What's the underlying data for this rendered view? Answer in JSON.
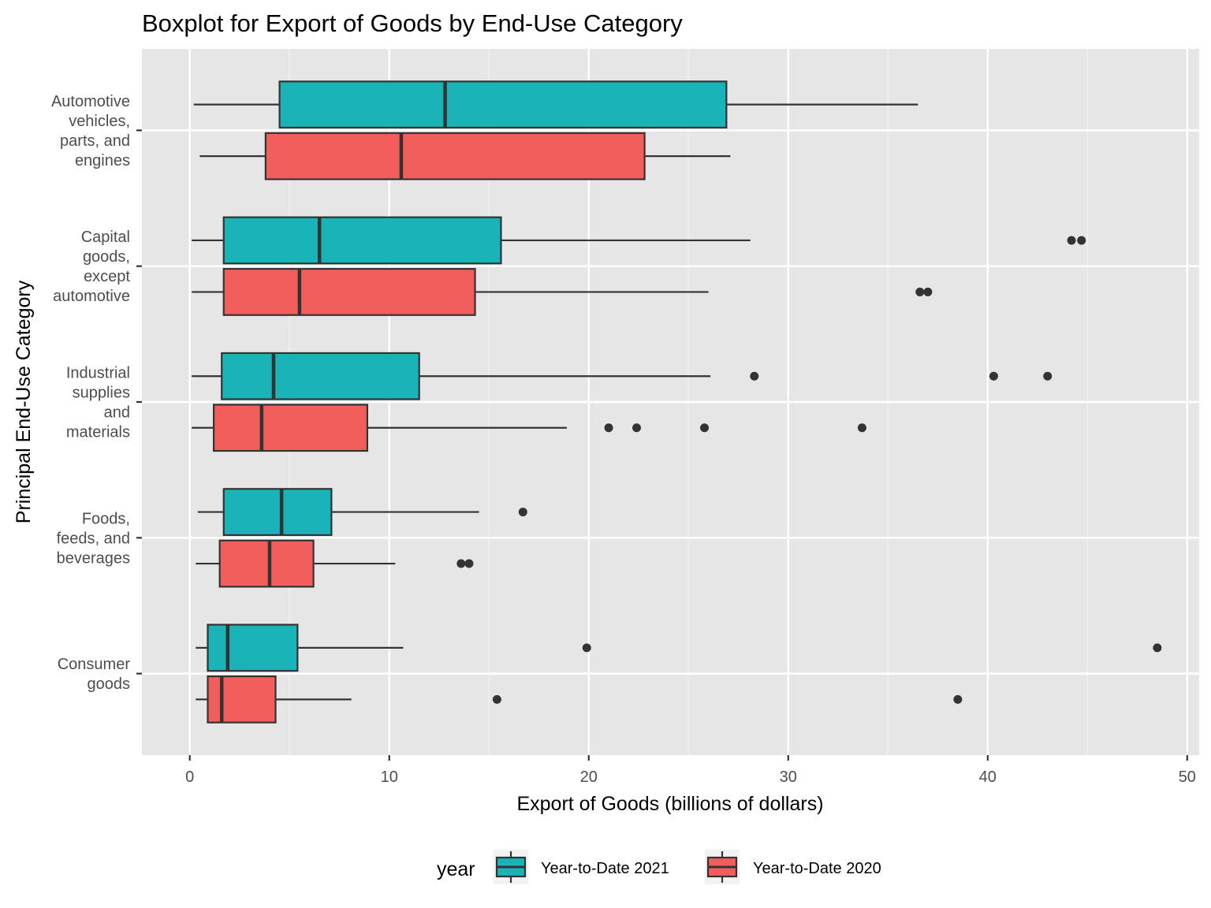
{
  "chart_data": {
    "type": "boxplot",
    "title": "Boxplot for Export of Goods by End-Use Category",
    "xlabel": "Export of Goods (billions of dollars)",
    "ylabel": "Principal End-Use Category",
    "xlim": [
      -2.4,
      50.6
    ],
    "x_ticks": [
      "0",
      "10",
      "20",
      "30",
      "40",
      "50"
    ],
    "x_tick_values": [
      0,
      10,
      20,
      30,
      40,
      50
    ],
    "grid": true,
    "legend": {
      "title": "year",
      "position": "bottom",
      "entries": [
        {
          "label": "Year-to-Date 2021",
          "color": "#1ab3b8"
        },
        {
          "label": "Year-to-Date 2020",
          "color": "#f25e5b"
        }
      ]
    },
    "categories": [
      {
        "label_lines": [
          "Automotive",
          "vehicles,",
          "parts, and",
          "engines"
        ]
      },
      {
        "label_lines": [
          "Capital",
          "goods,",
          "except",
          "automotive"
        ]
      },
      {
        "label_lines": [
          "Industrial",
          "supplies",
          "and",
          "materials"
        ]
      },
      {
        "label_lines": [
          "Foods,",
          "feeds, and",
          "beverages"
        ]
      },
      {
        "label_lines": [
          "Consumer",
          "goods"
        ]
      }
    ],
    "series": [
      {
        "name": "Year-to-Date 2021",
        "color": "#1ab3b8",
        "boxes": [
          {
            "whisker_low": 0.2,
            "q1": 4.5,
            "median": 12.8,
            "q3": 26.9,
            "whisker_high": 36.5,
            "outliers": []
          },
          {
            "whisker_low": 0.1,
            "q1": 1.7,
            "median": 6.5,
            "q3": 15.6,
            "whisker_high": 28.1,
            "outliers": [
              44.2,
              44.7
            ]
          },
          {
            "whisker_low": 0.1,
            "q1": 1.6,
            "median": 4.2,
            "q3": 11.5,
            "whisker_high": 26.1,
            "outliers": [
              28.3,
              40.3,
              43.0
            ]
          },
          {
            "whisker_low": 0.4,
            "q1": 1.7,
            "median": 4.6,
            "q3": 7.1,
            "whisker_high": 14.5,
            "outliers": [
              16.7
            ]
          },
          {
            "whisker_low": 0.3,
            "q1": 0.9,
            "median": 1.9,
            "q3": 5.4,
            "whisker_high": 10.7,
            "outliers": [
              19.9,
              48.5
            ]
          }
        ]
      },
      {
        "name": "Year-to-Date 2020",
        "color": "#f25e5b",
        "boxes": [
          {
            "whisker_low": 0.5,
            "q1": 3.8,
            "median": 10.6,
            "q3": 22.8,
            "whisker_high": 27.1,
            "outliers": []
          },
          {
            "whisker_low": 0.1,
            "q1": 1.7,
            "median": 5.5,
            "q3": 14.3,
            "whisker_high": 26.0,
            "outliers": [
              36.6,
              37.0
            ]
          },
          {
            "whisker_low": 0.1,
            "q1": 1.2,
            "median": 3.6,
            "q3": 8.9,
            "whisker_high": 18.9,
            "outliers": [
              21.0,
              22.4,
              25.8,
              33.7
            ]
          },
          {
            "whisker_low": 0.3,
            "q1": 1.5,
            "median": 4.0,
            "q3": 6.2,
            "whisker_high": 10.3,
            "outliers": [
              13.6,
              14.0
            ]
          },
          {
            "whisker_low": 0.3,
            "q1": 0.9,
            "median": 1.6,
            "q3": 4.3,
            "whisker_high": 8.1,
            "outliers": [
              15.4,
              38.5
            ]
          }
        ]
      }
    ]
  }
}
